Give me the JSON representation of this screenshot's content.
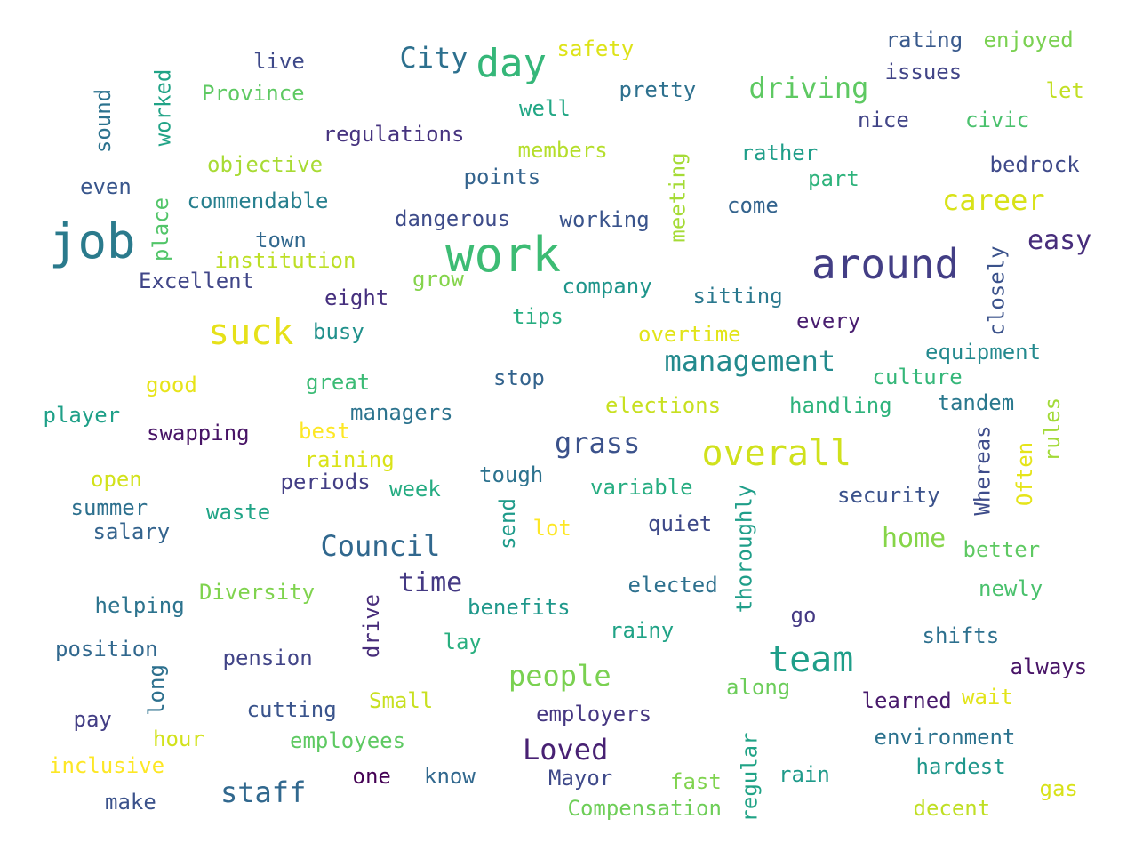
{
  "words": [
    {
      "text": "job",
      "color": "#2a7a8c"
    },
    {
      "text": "work",
      "color": "#3dbc74"
    },
    {
      "text": "around",
      "color": "#433e85"
    },
    {
      "text": "day",
      "color": "#35b779"
    },
    {
      "text": "suck",
      "color": "#e6e11a"
    },
    {
      "text": "overall",
      "color": "#d0e11c"
    },
    {
      "text": "team",
      "color": "#1f9e89"
    },
    {
      "text": "City",
      "color": "#2d708e"
    },
    {
      "text": "driving",
      "color": "#5ec962"
    },
    {
      "text": "career",
      "color": "#d8e219"
    },
    {
      "text": "management",
      "color": "#238a8d"
    },
    {
      "text": "grass",
      "color": "#3b528b"
    },
    {
      "text": "Council",
      "color": "#31688e"
    },
    {
      "text": "people",
      "color": "#7ad151"
    },
    {
      "text": "Loved",
      "color": "#482173"
    },
    {
      "text": "staff",
      "color": "#31688e"
    },
    {
      "text": "time",
      "color": "#443983"
    },
    {
      "text": "home",
      "color": "#86d549"
    },
    {
      "text": "easy",
      "color": "#472d7b"
    },
    {
      "text": "live",
      "color": "#3e4989"
    },
    {
      "text": "safety",
      "color": "#dde318"
    },
    {
      "text": "rating",
      "color": "#38598c"
    },
    {
      "text": "enjoyed",
      "color": "#7ad151"
    },
    {
      "text": "issues",
      "color": "#414487"
    },
    {
      "text": "let",
      "color": "#c2df23"
    },
    {
      "text": "worked",
      "color": "#20a386"
    },
    {
      "text": "sound",
      "color": "#2c728e"
    },
    {
      "text": "Province",
      "color": "#5ec962"
    },
    {
      "text": "pretty",
      "color": "#2d708e"
    },
    {
      "text": "well",
      "color": "#22a785"
    },
    {
      "text": "nice",
      "color": "#414487"
    },
    {
      "text": "civic",
      "color": "#4ac16d"
    },
    {
      "text": "regulations",
      "color": "#46337f"
    },
    {
      "text": "members",
      "color": "#b5de2b"
    },
    {
      "text": "rather",
      "color": "#1f9e89"
    },
    {
      "text": "objective",
      "color": "#a8db34"
    },
    {
      "text": "bedrock",
      "color": "#3e4989"
    },
    {
      "text": "points",
      "color": "#33638d"
    },
    {
      "text": "meeting",
      "color": "#a5db36"
    },
    {
      "text": "part",
      "color": "#2eb37c"
    },
    {
      "text": "even",
      "color": "#39568c"
    },
    {
      "text": "commendable",
      "color": "#277f8e"
    },
    {
      "text": "place",
      "color": "#52c569"
    },
    {
      "text": "dangerous",
      "color": "#3e4c8a"
    },
    {
      "text": "working",
      "color": "#3a548c"
    },
    {
      "text": "come",
      "color": "#33638d"
    },
    {
      "text": "town",
      "color": "#31688e"
    },
    {
      "text": "institution",
      "color": "#bddf26"
    },
    {
      "text": "closely",
      "color": "#3b528b"
    },
    {
      "text": "Excellent",
      "color": "#404688"
    },
    {
      "text": "grow",
      "color": "#84d44b"
    },
    {
      "text": "company",
      "color": "#1f958b"
    },
    {
      "text": "eight",
      "color": "#46307e"
    },
    {
      "text": "sitting",
      "color": "#2a788e"
    },
    {
      "text": "tips",
      "color": "#27ad81"
    },
    {
      "text": "every",
      "color": "#481d6f"
    },
    {
      "text": "busy",
      "color": "#21918c"
    },
    {
      "text": "overtime",
      "color": "#e2e418"
    },
    {
      "text": "equipment",
      "color": "#23898e"
    },
    {
      "text": "good",
      "color": "#e7e419"
    },
    {
      "text": "great",
      "color": "#3bbb75"
    },
    {
      "text": "stop",
      "color": "#33638d"
    },
    {
      "text": "culture",
      "color": "#35b779"
    },
    {
      "text": "elections",
      "color": "#c8e020"
    },
    {
      "text": "handling",
      "color": "#2eb37c"
    },
    {
      "text": "tandem",
      "color": "#2a788e"
    },
    {
      "text": "rules",
      "color": "#a2da37"
    },
    {
      "text": "player",
      "color": "#1fa088"
    },
    {
      "text": "managers",
      "color": "#2c738e"
    },
    {
      "text": "swapping",
      "color": "#471365"
    },
    {
      "text": "best",
      "color": "#fde725"
    },
    {
      "text": "raining",
      "color": "#dae319"
    },
    {
      "text": "Whereas",
      "color": "#3e4c8a"
    },
    {
      "text": "open",
      "color": "#d2e21b"
    },
    {
      "text": "periods",
      "color": "#433e85"
    },
    {
      "text": "week",
      "color": "#25ac82"
    },
    {
      "text": "tough",
      "color": "#2c728e"
    },
    {
      "text": "variable",
      "color": "#26ad81"
    },
    {
      "text": "security",
      "color": "#3b528b"
    },
    {
      "text": "Often",
      "color": "#e5e419"
    },
    {
      "text": "summer",
      "color": "#2d708e"
    },
    {
      "text": "waste",
      "color": "#20a486"
    },
    {
      "text": "send",
      "color": "#1e9b8a"
    },
    {
      "text": "thoroughly",
      "color": "#1f9e89"
    },
    {
      "text": "quiet",
      "color": "#3e4989"
    },
    {
      "text": "salary",
      "color": "#33638d"
    },
    {
      "text": "lot",
      "color": "#fde725"
    },
    {
      "text": "better",
      "color": "#5ec962"
    },
    {
      "text": "Diversity",
      "color": "#7fd34e"
    },
    {
      "text": "elected",
      "color": "#2d708e"
    },
    {
      "text": "newly",
      "color": "#4ac16d"
    },
    {
      "text": "helping",
      "color": "#2c738e"
    },
    {
      "text": "drive",
      "color": "#472c7a"
    },
    {
      "text": "benefits",
      "color": "#1f988b"
    },
    {
      "text": "go",
      "color": "#443983"
    },
    {
      "text": "position",
      "color": "#31688e"
    },
    {
      "text": "rainy",
      "color": "#20a386"
    },
    {
      "text": "lay",
      "color": "#29af7f"
    },
    {
      "text": "shifts",
      "color": "#2d708e"
    },
    {
      "text": "pension",
      "color": "#414487"
    },
    {
      "text": "long",
      "color": "#2d708e"
    },
    {
      "text": "always",
      "color": "#481467"
    },
    {
      "text": "along",
      "color": "#6ccd5a"
    },
    {
      "text": "Small",
      "color": "#c8e020"
    },
    {
      "text": "learned",
      "color": "#481a6c"
    },
    {
      "text": "wait",
      "color": "#e2e418"
    },
    {
      "text": "cutting",
      "color": "#3a548c"
    },
    {
      "text": "employers",
      "color": "#453781"
    },
    {
      "text": "pay",
      "color": "#433e85"
    },
    {
      "text": "environment",
      "color": "#2c728e"
    },
    {
      "text": "hour",
      "color": "#d2e21b"
    },
    {
      "text": "employees",
      "color": "#5ec962"
    },
    {
      "text": "regular",
      "color": "#20a386"
    },
    {
      "text": "hardest",
      "color": "#1f978b"
    },
    {
      "text": "inclusive",
      "color": "#fde725"
    },
    {
      "text": "one",
      "color": "#440154"
    },
    {
      "text": "know",
      "color": "#31688e"
    },
    {
      "text": "Mayor",
      "color": "#3e4989"
    },
    {
      "text": "fast",
      "color": "#7fd34e"
    },
    {
      "text": "rain",
      "color": "#1f9a8a"
    },
    {
      "text": "gas",
      "color": "#d8e219"
    },
    {
      "text": "make",
      "color": "#3b528b"
    },
    {
      "text": "Compensation",
      "color": "#6ece58"
    },
    {
      "text": "decent",
      "color": "#c0df25"
    }
  ]
}
